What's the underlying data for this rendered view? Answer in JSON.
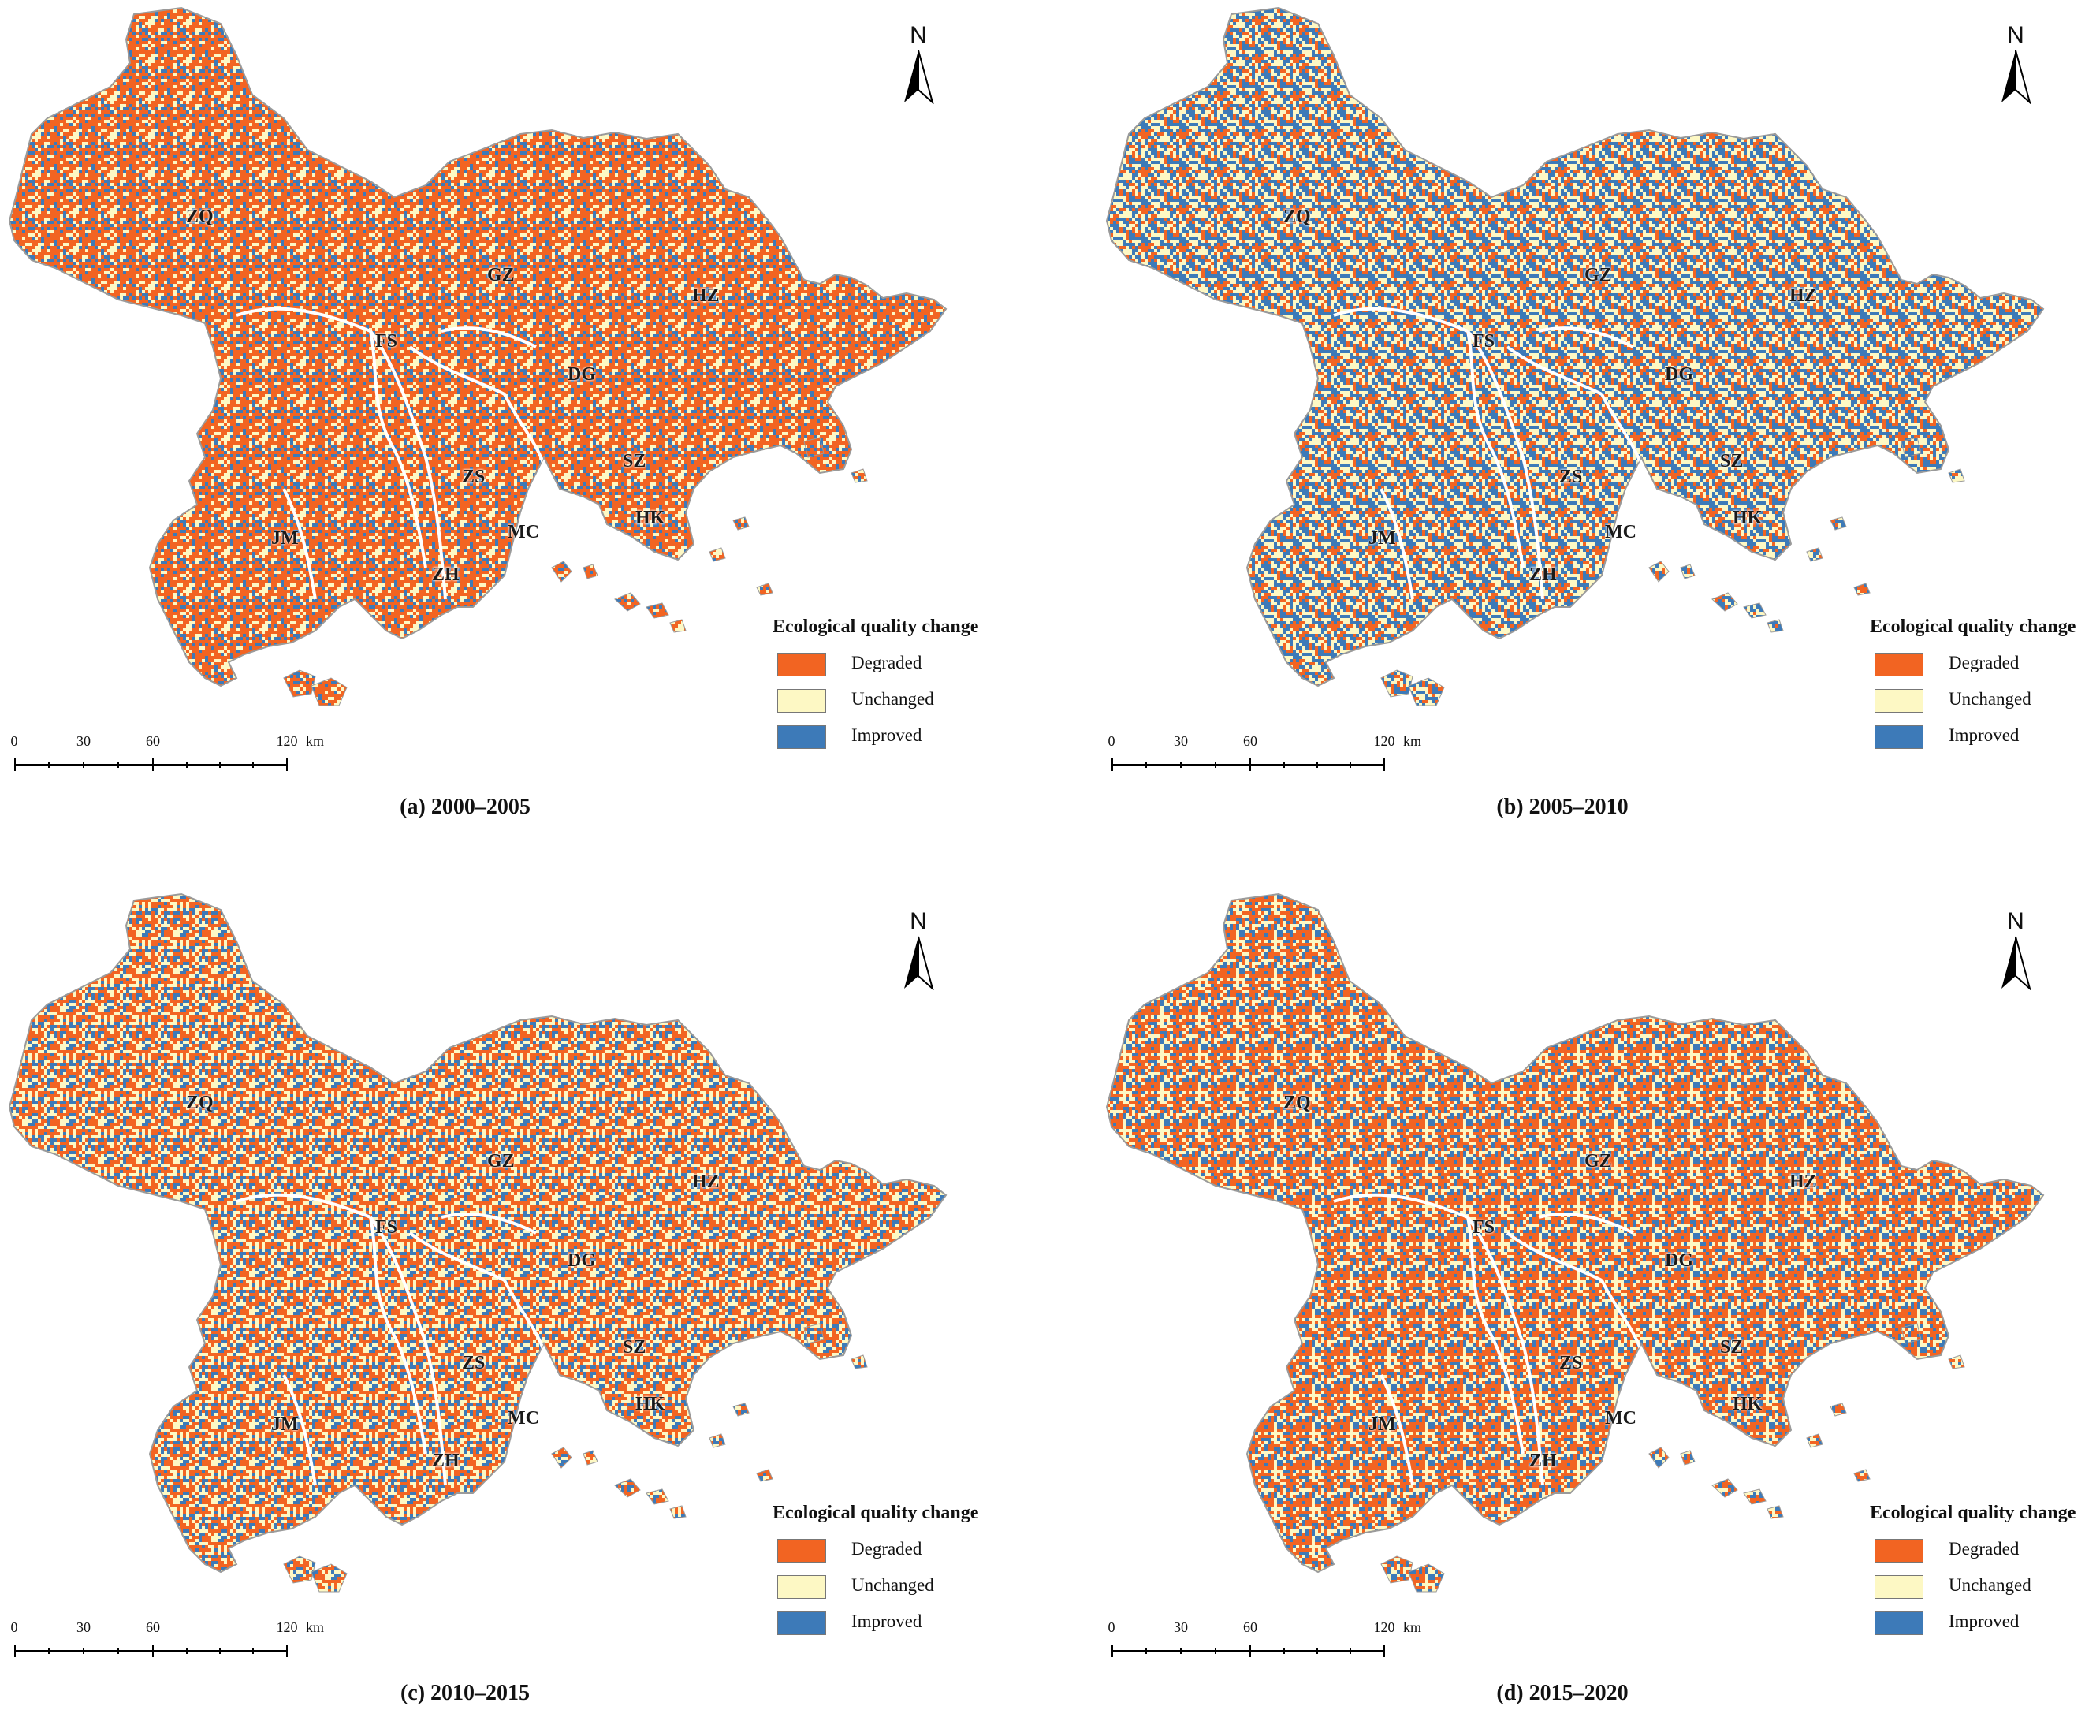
{
  "colors": {
    "degraded": "#f26422",
    "unchanged": "#fdf8c4",
    "improved": "#3d7ab8",
    "boundary": "#9a9a9a",
    "water": "#ffffff"
  },
  "icons": {
    "north_arrow": "north-arrow-icon"
  },
  "legend": {
    "title": "Ecological quality change",
    "items": [
      {
        "label": "Degraded",
        "color": "#f26422"
      },
      {
        "label": "Unchanged",
        "color": "#fdf8c4"
      },
      {
        "label": "Improved",
        "color": "#3d7ab8"
      }
    ]
  },
  "north_label": "N",
  "scale_bar": {
    "labels": [
      "0",
      "30",
      "60",
      "120"
    ],
    "unit": "km"
  },
  "cities": [
    "ZQ",
    "GZ",
    "HZ",
    "FS",
    "DG",
    "SZ",
    "ZS",
    "HK",
    "JM",
    "MC",
    "ZH"
  ],
  "panels": [
    {
      "caption": "(a) 2000–2005",
      "mix": {
        "degraded": 0.62,
        "unchanged": 0.22,
        "improved": 0.16
      }
    },
    {
      "caption": "(b) 2005–2010",
      "mix": {
        "degraded": 0.28,
        "unchanged": 0.3,
        "improved": 0.42
      }
    },
    {
      "caption": "(c) 2010–2015",
      "mix": {
        "degraded": 0.42,
        "unchanged": 0.35,
        "improved": 0.23
      }
    },
    {
      "caption": "(d) 2015–2020",
      "mix": {
        "degraded": 0.45,
        "unchanged": 0.3,
        "improved": 0.25
      }
    }
  ]
}
